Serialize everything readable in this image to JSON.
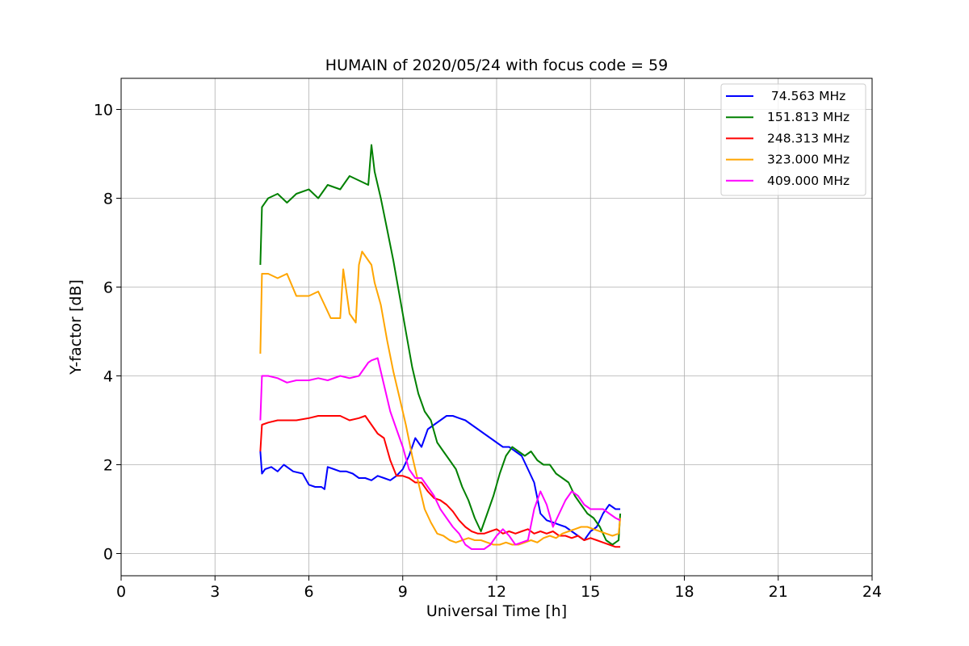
{
  "chart_data": {
    "type": "line",
    "title": "HUMAIN of 2020/05/24 with focus code = 59",
    "xlabel": "Universal Time [h]",
    "ylabel": "Y-factor [dB]",
    "xlim": [
      0,
      24
    ],
    "ylim": [
      -0.5,
      10.7
    ],
    "xticks": [
      0,
      3,
      6,
      9,
      12,
      15,
      18,
      21,
      24
    ],
    "yticks": [
      0,
      2,
      4,
      6,
      8,
      10
    ],
    "grid": true,
    "legend_position": "top-right",
    "series": [
      {
        "name": " 74.563 MHz",
        "color": "#0000ff",
        "x": [
          4.45,
          4.5,
          4.6,
          4.8,
          5.0,
          5.2,
          5.5,
          5.8,
          6.0,
          6.2,
          6.4,
          6.5,
          6.6,
          6.8,
          7.0,
          7.2,
          7.4,
          7.6,
          7.8,
          8.0,
          8.2,
          8.4,
          8.6,
          8.8,
          9.0,
          9.2,
          9.4,
          9.6,
          9.8,
          10.0,
          10.2,
          10.4,
          10.6,
          10.8,
          11.0,
          11.2,
          11.4,
          11.6,
          11.8,
          12.0,
          12.2,
          12.4,
          12.6,
          12.8,
          13.0,
          13.2,
          13.4,
          13.6,
          13.8,
          14.0,
          14.2,
          14.4,
          14.6,
          14.8,
          15.0,
          15.2,
          15.4,
          15.6,
          15.8,
          15.95
        ],
        "y": [
          2.3,
          1.8,
          1.9,
          1.95,
          1.85,
          2.0,
          1.85,
          1.8,
          1.55,
          1.5,
          1.5,
          1.45,
          1.95,
          1.9,
          1.85,
          1.85,
          1.8,
          1.7,
          1.7,
          1.65,
          1.75,
          1.7,
          1.65,
          1.75,
          1.9,
          2.2,
          2.6,
          2.4,
          2.8,
          2.9,
          3.0,
          3.1,
          3.1,
          3.05,
          3.0,
          2.9,
          2.8,
          2.7,
          2.6,
          2.5,
          2.4,
          2.4,
          2.3,
          2.2,
          1.9,
          1.6,
          0.9,
          0.75,
          0.7,
          0.65,
          0.6,
          0.5,
          0.4,
          0.3,
          0.5,
          0.6,
          0.9,
          1.1,
          1.0,
          1.0
        ]
      },
      {
        "name": "151.813 MHz",
        "color": "#008000",
        "x": [
          4.45,
          4.5,
          4.7,
          5.0,
          5.3,
          5.6,
          6.0,
          6.3,
          6.6,
          7.0,
          7.3,
          7.6,
          7.9,
          8.0,
          8.1,
          8.3,
          8.5,
          8.7,
          8.9,
          9.1,
          9.3,
          9.5,
          9.7,
          9.9,
          10.1,
          10.3,
          10.5,
          10.7,
          10.9,
          11.1,
          11.3,
          11.5,
          11.7,
          11.9,
          12.1,
          12.3,
          12.5,
          12.7,
          12.9,
          13.1,
          13.3,
          13.5,
          13.7,
          13.9,
          14.1,
          14.3,
          14.5,
          14.7,
          14.9,
          15.1,
          15.3,
          15.5,
          15.7,
          15.9,
          15.95
        ],
        "y": [
          6.5,
          7.8,
          8.0,
          8.1,
          7.9,
          8.1,
          8.2,
          8.0,
          8.3,
          8.2,
          8.5,
          8.4,
          8.3,
          9.2,
          8.6,
          8.0,
          7.3,
          6.6,
          5.8,
          5.0,
          4.2,
          3.6,
          3.2,
          3.0,
          2.5,
          2.3,
          2.1,
          1.9,
          1.5,
          1.2,
          0.8,
          0.5,
          0.9,
          1.3,
          1.8,
          2.2,
          2.4,
          2.3,
          2.2,
          2.3,
          2.1,
          2.0,
          2.0,
          1.8,
          1.7,
          1.6,
          1.3,
          1.1,
          0.9,
          0.8,
          0.6,
          0.3,
          0.2,
          0.3,
          0.9
        ]
      },
      {
        "name": "248.313 MHz",
        "color": "#ff0000",
        "x": [
          4.45,
          4.5,
          4.7,
          5.0,
          5.3,
          5.6,
          6.0,
          6.3,
          6.6,
          7.0,
          7.3,
          7.6,
          7.8,
          8.0,
          8.2,
          8.4,
          8.6,
          8.8,
          9.0,
          9.2,
          9.4,
          9.6,
          9.8,
          10.0,
          10.2,
          10.4,
          10.6,
          10.8,
          11.0,
          11.2,
          11.4,
          11.6,
          11.8,
          12.0,
          12.2,
          12.4,
          12.6,
          12.8,
          13.0,
          13.2,
          13.4,
          13.6,
          13.8,
          14.0,
          14.2,
          14.4,
          14.6,
          14.8,
          15.0,
          15.2,
          15.4,
          15.6,
          15.8,
          15.95
        ],
        "y": [
          2.3,
          2.9,
          2.95,
          3.0,
          3.0,
          3.0,
          3.05,
          3.1,
          3.1,
          3.1,
          3.0,
          3.05,
          3.1,
          2.9,
          2.7,
          2.6,
          2.1,
          1.75,
          1.75,
          1.7,
          1.6,
          1.6,
          1.4,
          1.25,
          1.2,
          1.1,
          0.95,
          0.75,
          0.6,
          0.5,
          0.45,
          0.45,
          0.5,
          0.55,
          0.45,
          0.5,
          0.45,
          0.5,
          0.55,
          0.45,
          0.5,
          0.45,
          0.5,
          0.4,
          0.4,
          0.35,
          0.4,
          0.3,
          0.35,
          0.3,
          0.25,
          0.2,
          0.15,
          0.15
        ]
      },
      {
        "name": "323.000 MHz",
        "color": "#ffa500",
        "x": [
          4.45,
          4.5,
          4.7,
          5.0,
          5.3,
          5.6,
          6.0,
          6.3,
          6.5,
          6.7,
          7.0,
          7.1,
          7.3,
          7.5,
          7.6,
          7.7,
          7.9,
          8.0,
          8.1,
          8.3,
          8.5,
          8.7,
          8.9,
          9.1,
          9.3,
          9.5,
          9.7,
          9.9,
          10.1,
          10.3,
          10.5,
          10.7,
          10.9,
          11.1,
          11.3,
          11.5,
          11.7,
          11.9,
          12.1,
          12.3,
          12.5,
          12.7,
          12.9,
          13.1,
          13.3,
          13.5,
          13.7,
          13.9,
          14.1,
          14.3,
          14.5,
          14.7,
          14.9,
          15.1,
          15.3,
          15.5,
          15.7,
          15.9,
          15.95
        ],
        "y": [
          4.5,
          6.3,
          6.3,
          6.2,
          6.3,
          5.8,
          5.8,
          5.9,
          5.6,
          5.3,
          5.3,
          6.4,
          5.4,
          5.2,
          6.5,
          6.8,
          6.6,
          6.5,
          6.1,
          5.6,
          4.8,
          4.1,
          3.5,
          2.9,
          2.2,
          1.6,
          1.0,
          0.7,
          0.45,
          0.4,
          0.3,
          0.25,
          0.3,
          0.35,
          0.3,
          0.3,
          0.25,
          0.2,
          0.2,
          0.25,
          0.2,
          0.2,
          0.25,
          0.3,
          0.25,
          0.35,
          0.4,
          0.35,
          0.45,
          0.5,
          0.55,
          0.6,
          0.6,
          0.55,
          0.5,
          0.45,
          0.4,
          0.45,
          0.8
        ]
      },
      {
        "name": "409.000 MHz",
        "color": "#ff00ff",
        "x": [
          4.45,
          4.5,
          4.7,
          5.0,
          5.3,
          5.6,
          6.0,
          6.3,
          6.6,
          7.0,
          7.3,
          7.6,
          7.9,
          8.0,
          8.2,
          8.4,
          8.6,
          8.8,
          9.0,
          9.2,
          9.4,
          9.6,
          9.8,
          10.0,
          10.2,
          10.4,
          10.6,
          10.8,
          11.0,
          11.2,
          11.4,
          11.6,
          11.8,
          12.0,
          12.2,
          12.4,
          12.6,
          12.8,
          13.0,
          13.2,
          13.4,
          13.6,
          13.8,
          14.0,
          14.2,
          14.4,
          14.6,
          14.8,
          15.0,
          15.2,
          15.4,
          15.6,
          15.8,
          15.95
        ],
        "y": [
          3.0,
          4.0,
          4.0,
          3.95,
          3.85,
          3.9,
          3.9,
          3.95,
          3.9,
          4.0,
          3.95,
          4.0,
          4.3,
          4.35,
          4.4,
          3.8,
          3.2,
          2.8,
          2.4,
          1.9,
          1.7,
          1.7,
          1.5,
          1.3,
          1.0,
          0.8,
          0.6,
          0.45,
          0.2,
          0.1,
          0.1,
          0.1,
          0.2,
          0.4,
          0.55,
          0.4,
          0.2,
          0.25,
          0.3,
          1.0,
          1.4,
          1.1,
          0.6,
          0.9,
          1.2,
          1.4,
          1.3,
          1.1,
          1.0,
          1.0,
          1.0,
          0.9,
          0.8,
          0.75
        ]
      }
    ]
  }
}
